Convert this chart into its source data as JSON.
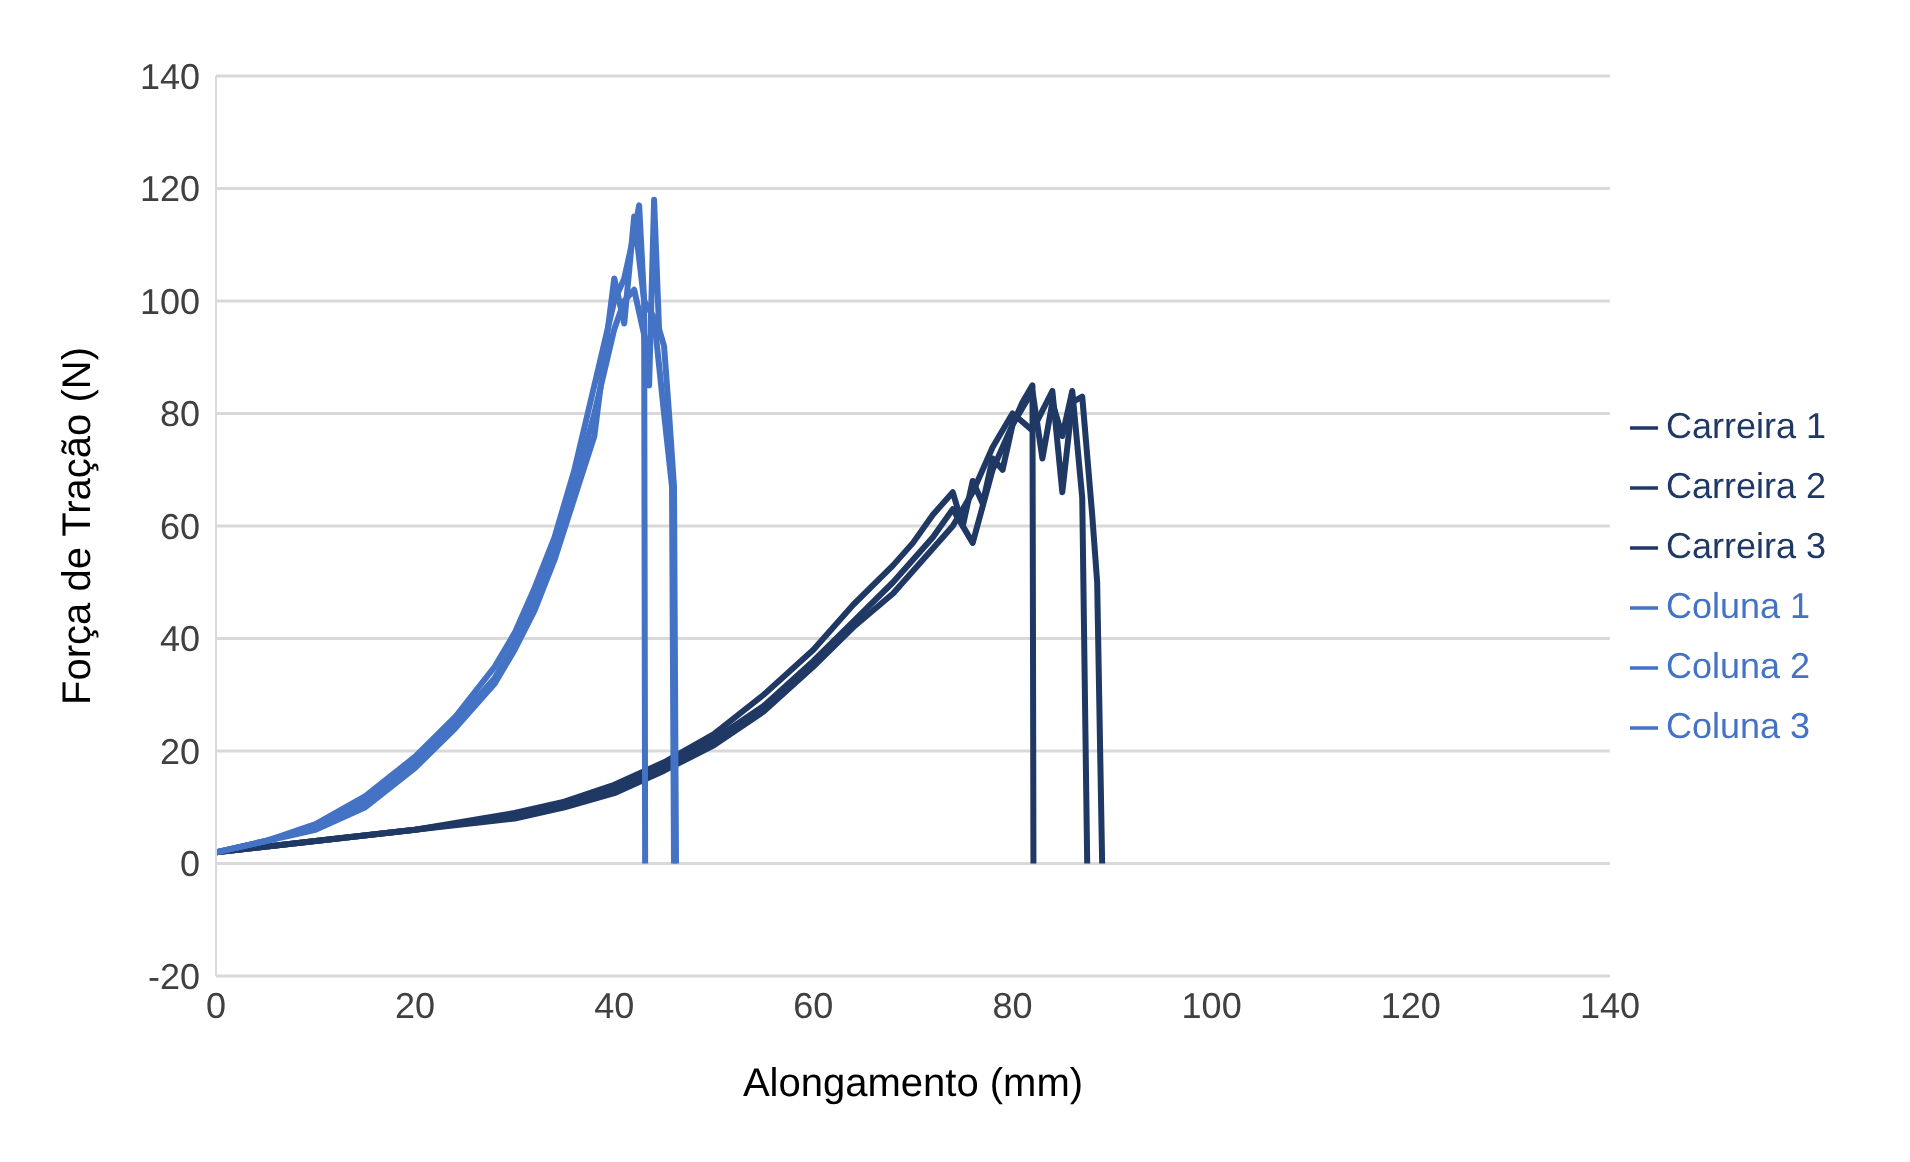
{
  "chart_data": {
    "type": "line",
    "xlabel": "Alongamento (mm)",
    "ylabel": "Força de Tração (N)",
    "xlim": [
      0,
      140
    ],
    "xticks": [
      0,
      20,
      40,
      60,
      80,
      100,
      120,
      140
    ],
    "ylim": [
      -20,
      140
    ],
    "yticks": [
      -20,
      0,
      20,
      40,
      60,
      80,
      100,
      120,
      140
    ],
    "grid": "y",
    "legend": "right",
    "marker": "none",
    "line_style": "solid",
    "series": [
      {
        "name": "Carreira 1",
        "color": "#203864",
        "x": [
          0,
          10,
          20,
          30,
          35,
          40,
          45,
          50,
          55,
          60,
          64,
          68,
          70,
          72,
          74,
          75,
          76,
          77,
          78,
          79,
          80,
          81,
          82,
          82.1
        ],
        "values": [
          2,
          4,
          6,
          9,
          11,
          14,
          18,
          23,
          30,
          38,
          46,
          53,
          57,
          62,
          66,
          60,
          68,
          64,
          72,
          70,
          78,
          82,
          85,
          0
        ]
      },
      {
        "name": "Carreira 2",
        "color": "#203864",
        "x": [
          0,
          10,
          20,
          30,
          35,
          40,
          45,
          50,
          55,
          60,
          64,
          68,
          70,
          72,
          74,
          76,
          78,
          80,
          82,
          83,
          84,
          85,
          86,
          87,
          87.5
        ],
        "values": [
          2,
          4,
          6,
          8.5,
          10.5,
          13,
          17,
          22,
          28,
          36,
          43,
          50,
          54,
          58,
          63,
          57,
          70,
          78,
          84,
          72,
          82,
          76,
          84,
          65,
          0
        ]
      },
      {
        "name": "Carreira 3",
        "color": "#203864",
        "x": [
          0,
          10,
          20,
          30,
          35,
          40,
          45,
          50,
          55,
          60,
          64,
          68,
          72,
          74,
          76,
          78,
          80,
          82,
          84,
          85,
          86,
          87,
          88,
          88.5,
          89
        ],
        "values": [
          2,
          4,
          6,
          8,
          10,
          12.5,
          16.5,
          21,
          27,
          35,
          42,
          48,
          56,
          60,
          66,
          74,
          80,
          77,
          84,
          66,
          82,
          83,
          62,
          50,
          0
        ]
      },
      {
        "name": "Coluna 1",
        "color": "#4472c4",
        "x": [
          0,
          5,
          10,
          15,
          20,
          24,
          28,
          30,
          32,
          34,
          36,
          38,
          40,
          41,
          42,
          42.5,
          43,
          43.1
        ],
        "values": [
          2,
          4,
          7,
          12,
          19,
          26,
          35,
          41,
          49,
          58,
          70,
          85,
          100,
          104,
          112,
          117,
          100,
          0
        ]
      },
      {
        "name": "Coluna 2",
        "color": "#4472c4",
        "x": [
          0,
          5,
          10,
          15,
          20,
          24,
          28,
          30,
          32,
          34,
          36,
          38,
          40,
          41,
          42,
          43,
          43.5,
          44,
          44.5,
          45,
          45.5,
          46,
          46.2
        ],
        "values": [
          2,
          4,
          6.5,
          11,
          18,
          25,
          33,
          39,
          47,
          56,
          67,
          80,
          95,
          100,
          102,
          94,
          85,
          118,
          95,
          92,
          80,
          67,
          0
        ]
      },
      {
        "name": "Coluna 3",
        "color": "#4472c4",
        "x": [
          0,
          5,
          10,
          15,
          20,
          24,
          28,
          30,
          32,
          34,
          36,
          38,
          39,
          40,
          41,
          42,
          43,
          44,
          45,
          45.8,
          46
        ],
        "values": [
          2,
          4,
          6,
          10,
          17,
          24,
          32,
          38,
          45,
          54,
          65,
          76,
          90,
          104,
          96,
          115,
          100,
          97,
          80,
          67,
          0
        ]
      }
    ]
  }
}
